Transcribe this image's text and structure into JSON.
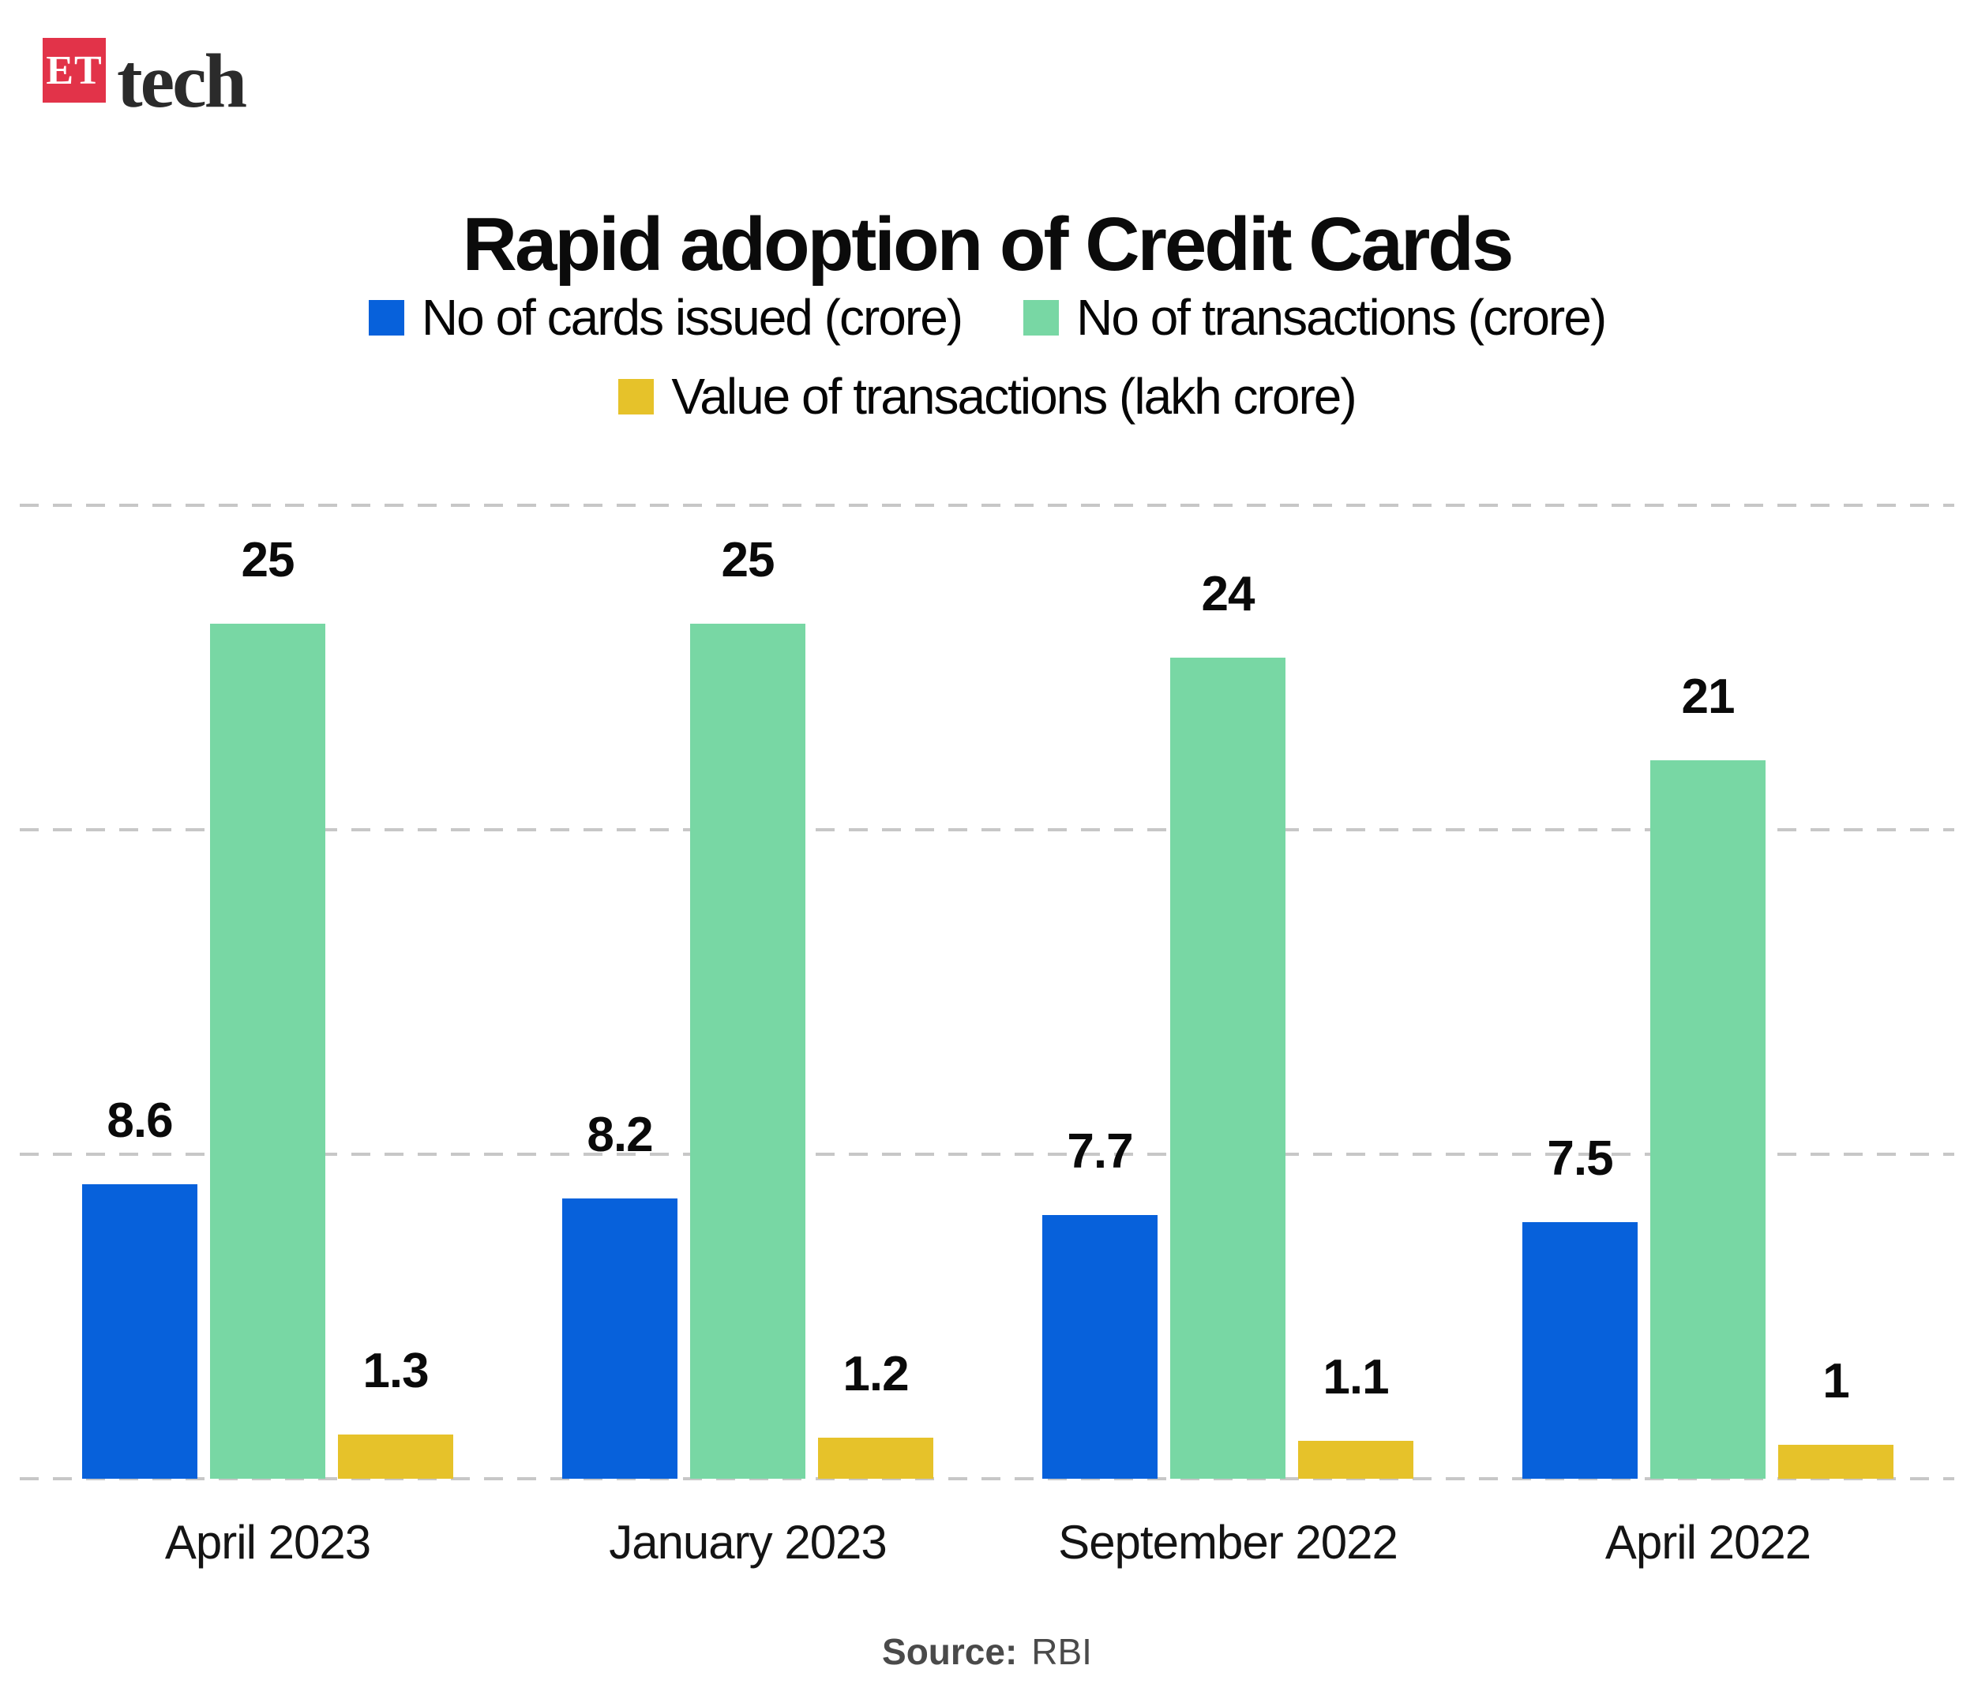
{
  "logo": {
    "badge": "ET",
    "brand": "tech"
  },
  "title": "Rapid adoption of Credit Cards",
  "source": {
    "label": "Source:",
    "value": "RBI"
  },
  "colors": {
    "cards_issued": "#0761DB",
    "transactions": "#78D7A4",
    "value_transactions": "#E6C22A",
    "gridline": "#C7C7C7",
    "logo_red": "#E23349"
  },
  "chart_data": {
    "type": "bar",
    "categories": [
      "April 2023",
      "January 2023",
      "September 2022",
      "April 2022"
    ],
    "series": [
      {
        "name": "No of cards issued (crore)",
        "color": "#0761DB",
        "values": [
          8.6,
          8.2,
          7.7,
          7.5
        ]
      },
      {
        "name": "No of transactions (crore)",
        "color": "#78D7A4",
        "values": [
          25,
          25,
          24,
          21
        ]
      },
      {
        "name": "Value of transactions (lakh crore)",
        "color": "#E6C22A",
        "values": [
          1.3,
          1.2,
          1.1,
          1
        ]
      }
    ],
    "title": "Rapid adoption of Credit Cards",
    "xlabel": "",
    "ylabel": "",
    "ylim": [
      0,
      28.4
    ],
    "grid": "horizontal-dashed",
    "gridline_values": [
      0,
      9.5,
      19,
      28.4
    ],
    "legend_position": "top",
    "bar_labels": true
  }
}
